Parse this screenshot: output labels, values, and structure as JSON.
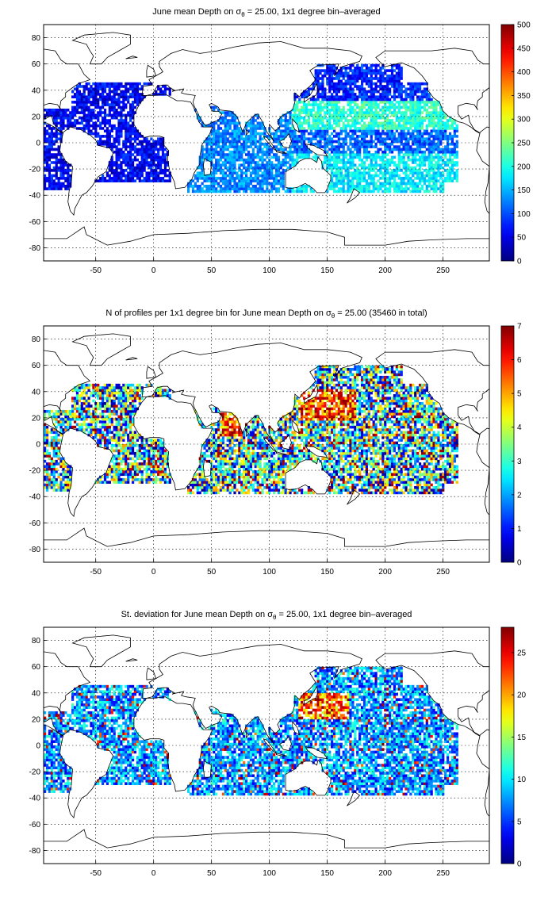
{
  "chart_data": [
    {
      "type": "heatmap",
      "title_pre": "June mean Depth on ",
      "title_sym": "σ",
      "title_sub": "θ",
      "title_post": " = 25.00, 1x1 degree bin–averaged",
      "xlim": [
        -95,
        290
      ],
      "ylim": [
        -90,
        90
      ],
      "x_ticks": [
        -50,
        0,
        50,
        100,
        150,
        200,
        250
      ],
      "y_ticks": [
        -80,
        -60,
        -40,
        -20,
        0,
        20,
        40,
        60,
        80
      ],
      "colorbar": {
        "min": 0,
        "max": 500,
        "ticks": [
          0,
          50,
          100,
          150,
          200,
          250,
          300,
          350,
          400,
          450,
          500
        ],
        "colormap": "jet"
      },
      "grid": true
    },
    {
      "type": "heatmap",
      "title_pre": "N of profiles per 1x1 degree bin for June mean Depth on ",
      "title_sym": "σ",
      "title_sub": "θ",
      "title_post": " = 25.00 (35460 in total)",
      "xlim": [
        -95,
        290
      ],
      "ylim": [
        -90,
        90
      ],
      "x_ticks": [
        -50,
        0,
        50,
        100,
        150,
        200,
        250
      ],
      "y_ticks": [
        -80,
        -60,
        -40,
        -20,
        0,
        20,
        40,
        60,
        80
      ],
      "colorbar": {
        "min": 0,
        "max": 7,
        "ticks": [
          0,
          1,
          2,
          3,
          4,
          5,
          6,
          7
        ],
        "colormap": "jet"
      },
      "grid": true
    },
    {
      "type": "heatmap",
      "title_pre": "St. deviation for June mean Depth on ",
      "title_sym": "σ",
      "title_sub": "θ",
      "title_post": " = 25.00, 1x1 degree bin–averaged",
      "xlim": [
        -95,
        290
      ],
      "ylim": [
        -90,
        90
      ],
      "x_ticks": [
        -50,
        0,
        50,
        100,
        150,
        200,
        250
      ],
      "y_ticks": [
        -80,
        -60,
        -40,
        -20,
        0,
        20,
        40,
        60,
        80
      ],
      "colorbar": {
        "min": 0,
        "max": 28,
        "ticks": [
          0,
          5,
          10,
          15,
          20,
          25
        ],
        "colormap": "jet"
      },
      "grid": true
    }
  ]
}
